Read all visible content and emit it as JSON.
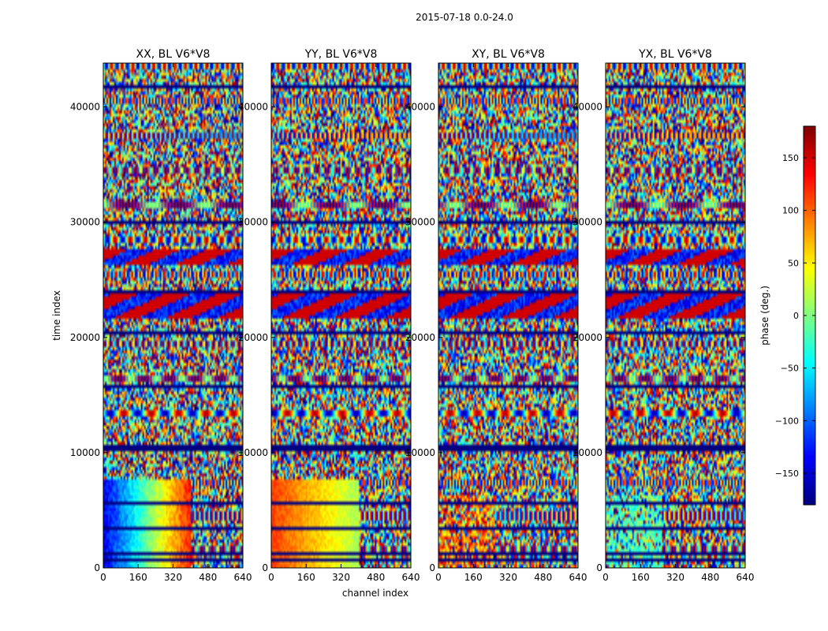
{
  "figure": {
    "suptitle": "2015-07-18 0.0-24.0"
  },
  "chart_data": {
    "type": "heatmap",
    "title": "2015-07-18 0.0-24.0",
    "xlabel": "channel index",
    "ylabel": "time index",
    "x_range": [
      0,
      640
    ],
    "y_range": [
      0,
      43800
    ],
    "x_ticks": [
      0,
      160,
      320,
      480,
      640
    ],
    "x_tick_labels": [
      "0",
      "160",
      "320",
      "480",
      "640"
    ],
    "y_ticks": [
      0,
      10000,
      20000,
      30000,
      40000
    ],
    "y_tick_labels": [
      "0",
      "10000",
      "20000",
      "30000",
      "40000"
    ],
    "panels": [
      {
        "title": "XX, BL V6*V8",
        "low_time_pattern": "blue-red",
        "low_time_upper": 7600,
        "low_channel_break": 400
      },
      {
        "title": "YY, BL V6*V8",
        "low_time_pattern": "orange-yellow",
        "low_time_upper": 7600,
        "low_channel_break": 400
      },
      {
        "title": "XY, BL V6*V8",
        "low_time_pattern": "noisy-warm",
        "low_time_upper": 6400,
        "low_channel_break": 260
      },
      {
        "title": "YX, BL V6*V8",
        "low_time_pattern": "noisy-cool",
        "low_time_upper": 6400,
        "low_channel_break": 260
      }
    ],
    "dark_bands": [
      [
        600,
        700
      ],
      [
        1200,
        1300
      ],
      [
        2200,
        2300
      ],
      [
        3400,
        3500
      ],
      [
        4600,
        4700
      ],
      [
        5600,
        5700
      ],
      [
        10200,
        10600
      ],
      [
        15600,
        15800
      ],
      [
        20200,
        20600
      ],
      [
        23800,
        24000
      ],
      [
        29800,
        30200
      ],
      [
        35200,
        35400
      ],
      [
        41600,
        41800
      ]
    ],
    "dense_pattern_ranges": [
      [
        21600,
        23800
      ],
      [
        26200,
        27600
      ]
    ],
    "colorbar": {
      "label": "phase (deg.)",
      "range": [
        -180,
        180
      ],
      "ticks": [
        -150,
        -100,
        -50,
        0,
        50,
        100,
        150
      ],
      "tick_labels": [
        "−150",
        "−100",
        "−50",
        "0",
        "50",
        "100",
        "150"
      ],
      "colormap": "jet"
    }
  }
}
